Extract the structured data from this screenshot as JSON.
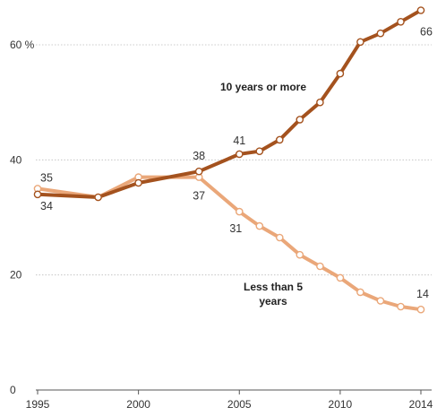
{
  "colors": {
    "ten_years": "#a4521e",
    "less_than_five": "#eaa779",
    "marker_fill": "#ffffff",
    "grid": "#bdbdbd",
    "text": "#333333"
  },
  "chart_data": {
    "type": "line",
    "xlim": [
      1995,
      2014
    ],
    "ylim": [
      0,
      66
    ],
    "grid": true,
    "x_ticks": [
      {
        "value": 1995,
        "label": "1995"
      },
      {
        "value": 2000,
        "label": "2000"
      },
      {
        "value": 2005,
        "label": "2005"
      },
      {
        "value": 2010,
        "label": "2010"
      },
      {
        "value": 2014,
        "label": "2014"
      }
    ],
    "y_ticks": [
      {
        "value": 0,
        "label": "0"
      },
      {
        "value": 20,
        "label": "20"
      },
      {
        "value": 40,
        "label": "40"
      },
      {
        "value": 60,
        "label": "60 %"
      }
    ],
    "series": [
      {
        "name": "10 years or more",
        "color_key": "ten_years",
        "x": [
          1995,
          1998,
          2000,
          2003,
          2005,
          2006,
          2007,
          2008,
          2009,
          2010,
          2011,
          2012,
          2013,
          2014
        ],
        "values": [
          34,
          33.5,
          36,
          38,
          41,
          41.5,
          43.5,
          47,
          50,
          55,
          60.5,
          62,
          64,
          66
        ]
      },
      {
        "name": "Less than 5 years",
        "color_key": "less_than_five",
        "x": [
          1995,
          1998,
          2000,
          2003,
          2005,
          2006,
          2007,
          2008,
          2009,
          2010,
          2011,
          2012,
          2013,
          2014
        ],
        "values": [
          35,
          33.5,
          37,
          37,
          31,
          28.5,
          26.5,
          23.5,
          21.5,
          19.5,
          17,
          15.5,
          14.5,
          14
        ]
      }
    ],
    "annotations": [
      {
        "text": "35",
        "x": 1995,
        "y": 35,
        "series": 1
      },
      {
        "text": "34",
        "x": 1995,
        "y": 34,
        "series": 0
      },
      {
        "text": "38",
        "x": 2003,
        "y": 38,
        "series": 0
      },
      {
        "text": "37",
        "x": 2003,
        "y": 37,
        "series": 1
      },
      {
        "text": "41",
        "x": 2005,
        "y": 41,
        "series": 0
      },
      {
        "text": "31",
        "x": 2005,
        "y": 31,
        "series": 1
      },
      {
        "text": "66",
        "x": 2014,
        "y": 66,
        "series": 0
      },
      {
        "text": "14",
        "x": 2014,
        "y": 14,
        "series": 1
      }
    ],
    "series_labels": [
      {
        "lines": [
          "10 years or more"
        ],
        "series": 0
      },
      {
        "lines": [
          "Less than 5",
          "years"
        ],
        "series": 1
      }
    ]
  }
}
